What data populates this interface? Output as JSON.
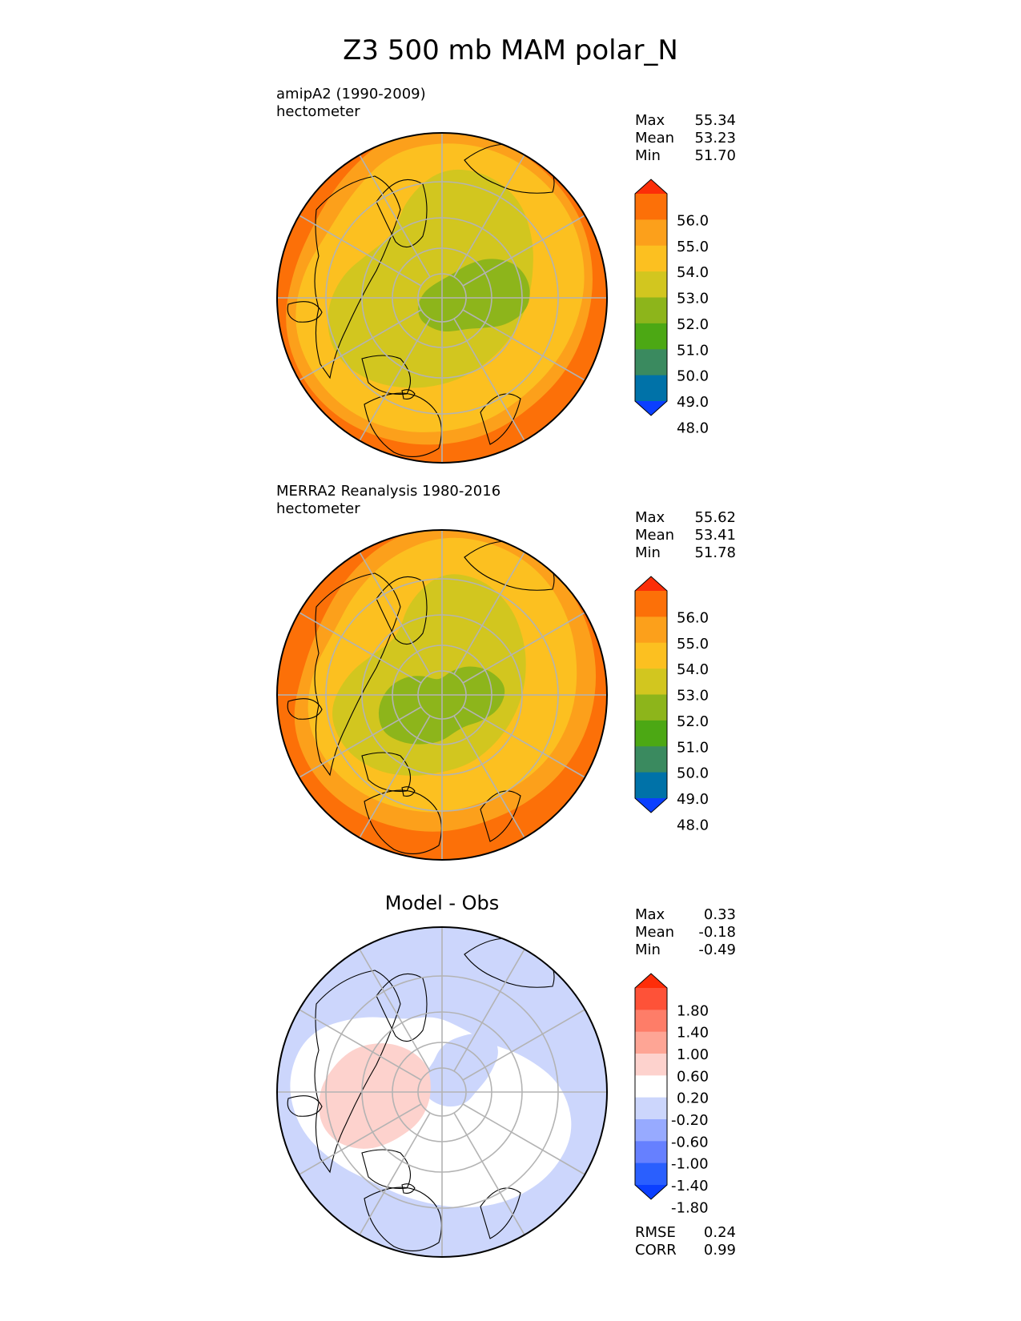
{
  "title": "Z3 500 mb MAM polar_N",
  "colors": {
    "abs_levels": [
      "#0b3fff",
      "#0072a8",
      "#3a8a5f",
      "#4ca814",
      "#8db51b",
      "#d2c61f",
      "#fcc020",
      "#fca01b",
      "#fc7008",
      "#fc2e08"
    ],
    "diff_levels": [
      "#0b3fff",
      "#2a5ffe",
      "#6680ff",
      "#97aaff",
      "#ccd6fc",
      "#ffffff",
      "#fdd2cd",
      "#fea595",
      "#fe7d68",
      "#fe5238",
      "#fe2d09"
    ],
    "graticule": "#b3b3b3",
    "coastline": "#000000"
  },
  "chart_data": [
    {
      "type": "heatmap",
      "projection": "north-polar-stereographic",
      "label": "amipA2 (1990-2009)",
      "units": "hectometer",
      "stats": {
        "Max": "55.34",
        "Mean": "53.23",
        "Min": "51.70"
      },
      "colorbar_ticks": [
        "56.0",
        "55.0",
        "54.0",
        "53.0",
        "52.0",
        "51.0",
        "50.0",
        "49.0",
        "48.0"
      ]
    },
    {
      "type": "heatmap",
      "projection": "north-polar-stereographic",
      "label": "MERRA2 Reanalysis 1980-2016",
      "units": "hectometer",
      "stats": {
        "Max": "55.62",
        "Mean": "53.41",
        "Min": "51.78"
      },
      "colorbar_ticks": [
        "56.0",
        "55.0",
        "54.0",
        "53.0",
        "52.0",
        "51.0",
        "50.0",
        "49.0",
        "48.0"
      ]
    },
    {
      "type": "heatmap",
      "projection": "north-polar-stereographic",
      "title": "Model - Obs",
      "stats": {
        "Max": "0.33",
        "Mean": "-0.18",
        "Min": "-0.49"
      },
      "colorbar_ticks": [
        "1.80",
        "1.40",
        "1.00",
        "0.60",
        "0.20",
        "-0.20",
        "-0.60",
        "-1.00",
        "-1.40",
        "-1.80"
      ],
      "metrics": {
        "RMSE": "0.24",
        "CORR": "0.99"
      }
    }
  ]
}
